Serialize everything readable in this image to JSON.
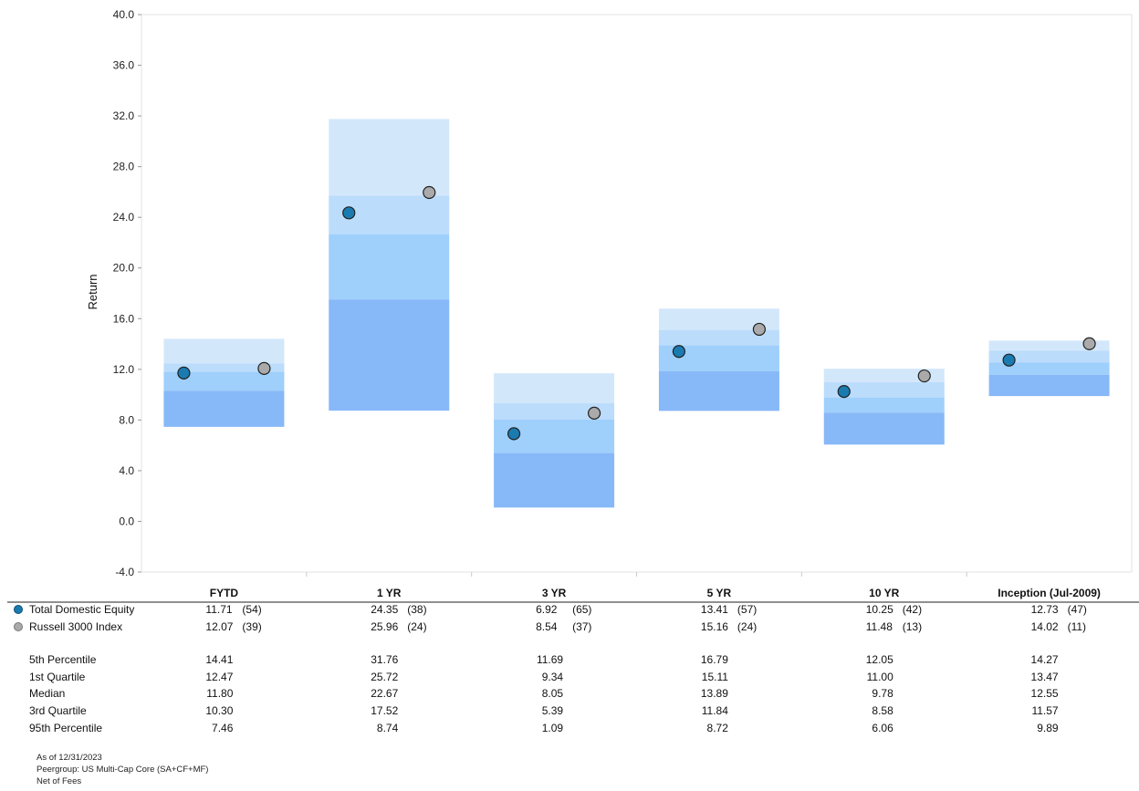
{
  "chart_data": {
    "type": "floating-bar",
    "ylabel": "Return",
    "ylim": [
      -4.0,
      40.0
    ],
    "yticks": [
      "40.0",
      "36.0",
      "32.0",
      "28.0",
      "24.0",
      "20.0",
      "16.0",
      "12.0",
      "8.0",
      "4.0",
      "0.0",
      "-4.0"
    ],
    "categories": [
      "FYTD",
      "1 YR",
      "3 YR",
      "5 YR",
      "10 YR",
      "Inception (Jul-2009)"
    ],
    "series": [
      {
        "name": "Total Domestic Equity",
        "color": "#1a7bb0",
        "values": [
          11.71,
          24.35,
          6.92,
          13.41,
          10.25,
          12.73
        ],
        "value_labels": [
          "11.71",
          "24.35",
          "6.92",
          "13.41",
          "10.25",
          "12.73"
        ],
        "ranks": [
          "(54)",
          "(38)",
          "(65)",
          "(57)",
          "(42)",
          "(47)"
        ]
      },
      {
        "name": "Russell 3000 Index",
        "color": "#aaaaaa",
        "values": [
          12.07,
          25.96,
          8.54,
          15.16,
          11.48,
          14.02
        ],
        "value_labels": [
          "12.07",
          "25.96",
          "8.54",
          "15.16",
          "11.48",
          "14.02"
        ],
        "ranks": [
          "(39)",
          "(24)",
          "(37)",
          "(24)",
          "(13)",
          "(11)"
        ]
      }
    ],
    "percentiles": [
      {
        "label": "5th Percentile",
        "values": [
          14.41,
          31.76,
          11.69,
          16.79,
          12.05,
          14.27
        ],
        "value_labels": [
          "14.41",
          "31.76",
          "11.69",
          "16.79",
          "12.05",
          "14.27"
        ]
      },
      {
        "label": "1st Quartile",
        "values": [
          12.47,
          25.72,
          9.34,
          15.11,
          11.0,
          13.47
        ],
        "value_labels": [
          "12.47",
          "25.72",
          "9.34",
          "15.11",
          "11.00",
          "13.47"
        ]
      },
      {
        "label": "Median",
        "values": [
          11.8,
          22.67,
          8.05,
          13.89,
          9.78,
          12.55
        ],
        "value_labels": [
          "11.80",
          "22.67",
          "8.05",
          "13.89",
          "9.78",
          "12.55"
        ]
      },
      {
        "label": "3rd Quartile",
        "values": [
          10.3,
          17.52,
          5.39,
          11.84,
          8.58,
          11.57
        ],
        "value_labels": [
          "10.30",
          "17.52",
          "5.39",
          "11.84",
          "8.58",
          "11.57"
        ]
      },
      {
        "label": "95th Percentile",
        "values": [
          7.46,
          8.74,
          1.09,
          8.72,
          6.06,
          9.89
        ],
        "value_labels": [
          "7.46",
          "8.74",
          "1.09",
          "8.72",
          "6.06",
          "9.89"
        ]
      }
    ],
    "band_colors": [
      "#d3e7fb",
      "#bcdcfb",
      "#9fcffb",
      "#87b8f8"
    ],
    "grid": false
  },
  "footnotes": [
    "As of 12/31/2023",
    "Peergroup: US Multi-Cap Core (SA+CF+MF)",
    "Net of Fees"
  ]
}
